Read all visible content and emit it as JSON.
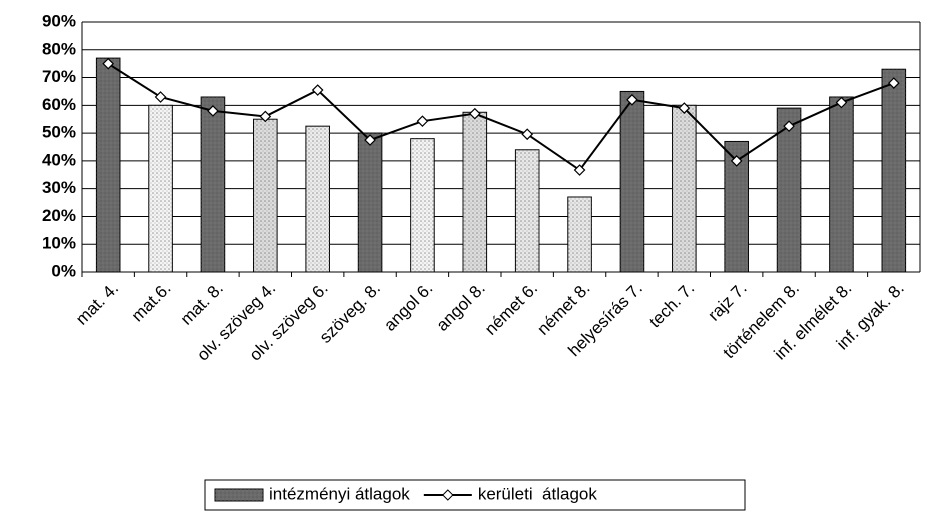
{
  "chart_data": {
    "type": "bar",
    "categories": [
      "mat. 4.",
      "mat.6.",
      "mat. 8.",
      "olv. szöveg 4.",
      "olv. szöveg 6.",
      "szöveg. 8.",
      "angol 6.",
      "angol 8.",
      "német 6.",
      "német 8.",
      "helyesírás 7.",
      "tech. 7.",
      "rajz 7.",
      "történelem  8.",
      "inf. elmélet 8.",
      "inf. gyak. 8."
    ],
    "series": [
      {
        "name": "intézményi átlagok",
        "type": "bar",
        "color": "#6a6a6a",
        "colors": [
          "#6a6a6a",
          "#f4f4f4",
          "#6a6a6a",
          "#dcdcdc",
          "#ececec",
          "#6a6a6a",
          "#f4f4f4",
          "#dcdcdc",
          "#e8e8e8",
          "#e8e8e8",
          "#6a6a6a",
          "#dcdcdc",
          "#6a6a6a",
          "#6a6a6a",
          "#6a6a6a",
          "#6a6a6a"
        ],
        "values": [
          77,
          60,
          63,
          55,
          52.5,
          50,
          48,
          57.5,
          44,
          27,
          65,
          60,
          47,
          59,
          63,
          73
        ]
      },
      {
        "name": "kerületi  átlagok",
        "type": "line",
        "color": "#000000",
        "values": [
          75,
          63,
          58,
          56,
          65.5,
          47.5,
          54.3,
          57,
          49.6,
          36.7,
          62,
          59,
          40,
          52.5,
          61,
          68
        ]
      }
    ],
    "ylim": [
      0,
      90
    ],
    "yticks": [
      {
        "value": 0,
        "label": "0%"
      },
      {
        "value": 10,
        "label": "10%"
      },
      {
        "value": 20,
        "label": "20%"
      },
      {
        "value": 30,
        "label": "30%"
      },
      {
        "value": 40,
        "label": "40%"
      },
      {
        "value": 50,
        "label": "50%"
      },
      {
        "value": 60,
        "label": "60%"
      },
      {
        "value": 70,
        "label": "70%"
      },
      {
        "value": 80,
        "label": "80%"
      },
      {
        "value": 90,
        "label": "90%"
      }
    ],
    "grid": true,
    "legend": "bottom"
  }
}
